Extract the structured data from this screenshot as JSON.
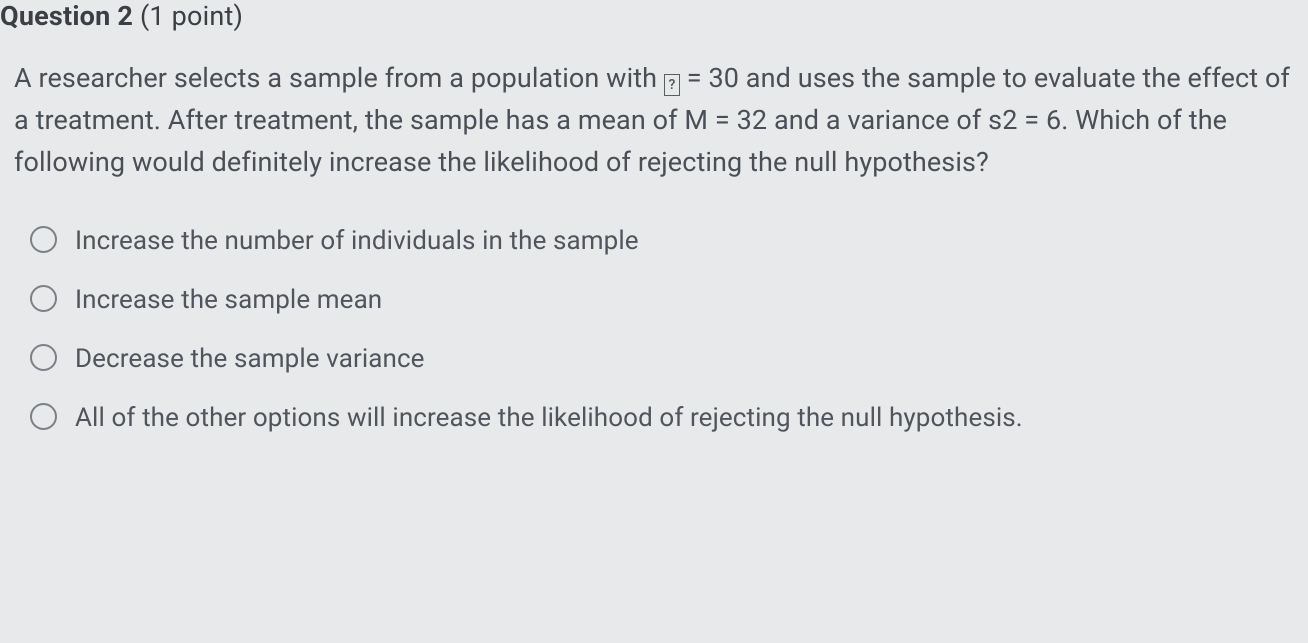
{
  "header": {
    "label": "Question 2",
    "points": "(1 point)"
  },
  "question": {
    "pre": "A researcher selects a sample from a population with ",
    "glyph": "?",
    "post": " = 30 and uses the sample to evaluate the effect of a treatment. After treatment, the sample has a mean of M = 32 and a variance of s2 = 6. Which of the following would definitely increase the likelihood of rejecting the null hypothesis?"
  },
  "options": [
    {
      "text": "Increase the number of individuals in the sample"
    },
    {
      "text": "Increase the sample mean"
    },
    {
      "text": "Decrease the sample variance"
    },
    {
      "text": "All of the other options will increase the likelihood of rejecting the null hypothesis."
    }
  ]
}
